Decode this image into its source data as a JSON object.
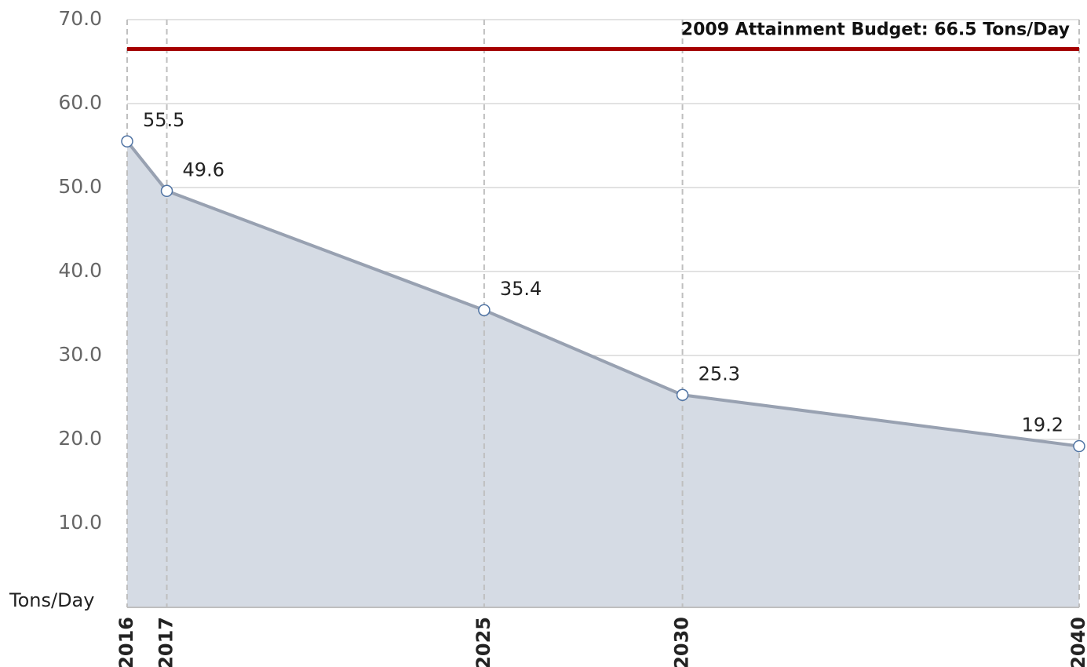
{
  "chart_data": {
    "type": "area",
    "ylabel": "Tons/Day",
    "x": [
      2016,
      2017,
      2025,
      2030,
      2040
    ],
    "values": [
      55.5,
      49.6,
      35.4,
      25.3,
      19.2
    ],
    "color": "#98a1b1",
    "fill_color": "#d5dbe4",
    "marker_color": "#4f73a3",
    "xlim": [
      2016,
      2040
    ],
    "xticks": [
      2016,
      2017,
      2025,
      2030,
      2040
    ],
    "ylim": [
      0,
      70
    ],
    "yticks": [
      {
        "value": 10,
        "label": "10.0"
      },
      {
        "value": 20,
        "label": "20.0"
      },
      {
        "value": 30,
        "label": "30.0"
      },
      {
        "value": 40,
        "label": "40.0"
      },
      {
        "value": 50,
        "label": "50.0"
      },
      {
        "value": 60,
        "label": "60.0"
      },
      {
        "value": 70,
        "label": "70.0"
      }
    ],
    "grid": true,
    "reference_line": {
      "value": 66.5,
      "label": "2009 Attainment Budget: 66.5 Tons/Day",
      "color": "#a50000"
    }
  }
}
